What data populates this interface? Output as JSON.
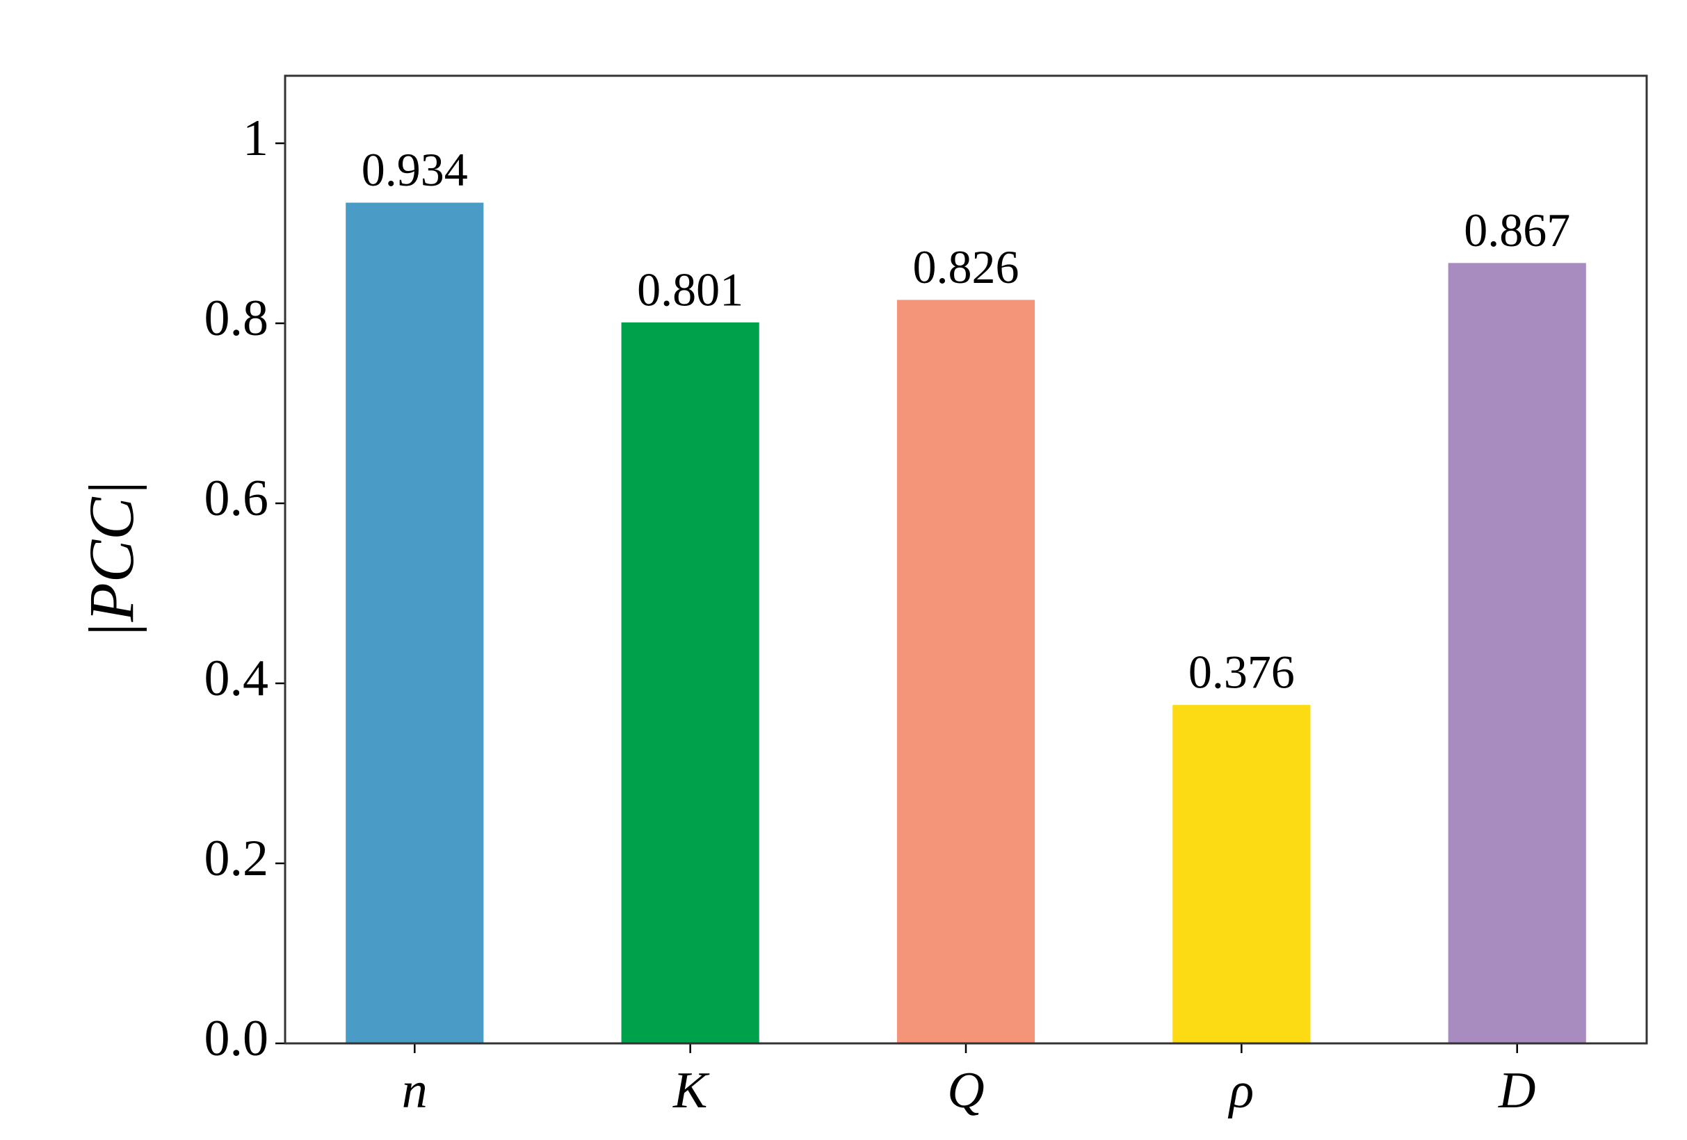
{
  "chart_data": {
    "type": "bar",
    "y_label": "|PCC|",
    "categories": [
      "n",
      "K",
      "Q",
      "ρ",
      "D"
    ],
    "values": [
      0.934,
      0.801,
      0.826,
      0.376,
      0.867
    ],
    "colors": [
      "#4a9cc6",
      "#00a14b",
      "#f49479",
      "#fddb14",
      "#a88cc0"
    ],
    "ylim": [
      0,
      1.075
    ],
    "yticks": [
      {
        "value": 0,
        "label": "0.0"
      },
      0.2,
      0.4,
      0.6,
      0.8,
      1
    ]
  }
}
